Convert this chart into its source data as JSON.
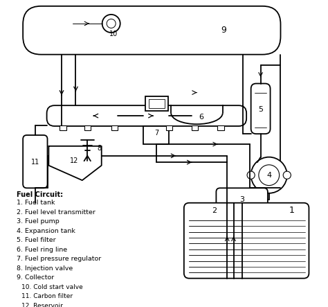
{
  "bg_color": "#ffffff",
  "line_color": "#000000",
  "legend_title": "Fuel Circuit:",
  "legend_items": [
    "1. Fuel tank",
    "2. Fuel level transmitter",
    "3. Fuel pump",
    "4. Expansion tank",
    "5. Fuel filter",
    "6. Fuel ring line",
    "7. Fuel pressure regulator",
    "8. Injection valve",
    "9. Collector",
    "10. Cold start valve",
    "11. Carbon filter",
    "12. Reservoir"
  ]
}
